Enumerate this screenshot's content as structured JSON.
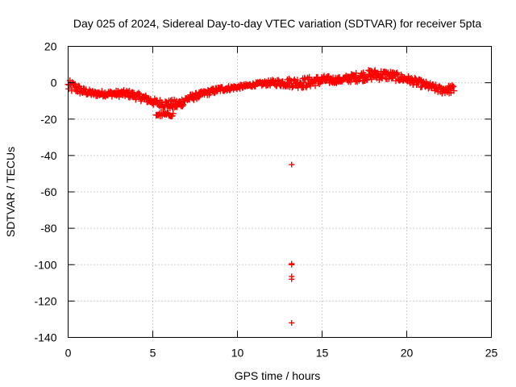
{
  "chart_data": {
    "type": "scatter",
    "title": "Day 025 of 2024, Sidereal Day-to-day VTEC variation (SDTVAR) for receiver 5pta",
    "xlabel": "GPS time / hours",
    "ylabel": "SDTVAR / TECUs",
    "xlim": [
      0,
      25
    ],
    "ylim": [
      -140,
      20
    ],
    "xticks": [
      0,
      5,
      10,
      15,
      20,
      25
    ],
    "yticks": [
      20,
      0,
      -20,
      -40,
      -60,
      -80,
      -100,
      -120,
      -140
    ],
    "xtick_labels": [
      "0",
      "5",
      "10",
      "15",
      "20",
      "25"
    ],
    "ytick_labels": [
      "20",
      "0",
      "-20",
      "-40",
      "-60",
      "-80",
      "-100",
      "-120",
      "-140"
    ],
    "grid": true,
    "marker": "plus",
    "series": [
      {
        "name": "SDTVAR",
        "color": "#ff0000",
        "band": [
          {
            "x": 0.0,
            "y": -2.0,
            "spread": 3.5
          },
          {
            "x": 0.4,
            "y": -2.5,
            "spread": 3.0
          },
          {
            "x": 0.8,
            "y": -4.5,
            "spread": 2.0
          },
          {
            "x": 1.5,
            "y": -6.0,
            "spread": 1.5
          },
          {
            "x": 2.5,
            "y": -6.0,
            "spread": 1.5
          },
          {
            "x": 3.5,
            "y": -6.0,
            "spread": 2.0
          },
          {
            "x": 4.5,
            "y": -8.5,
            "spread": 2.0
          },
          {
            "x": 5.2,
            "y": -11.0,
            "spread": 2.0
          },
          {
            "x": 6.0,
            "y": -12.0,
            "spread": 2.5
          },
          {
            "x": 6.5,
            "y": -12.0,
            "spread": 3.0
          },
          {
            "x": 7.0,
            "y": -9.0,
            "spread": 2.0
          },
          {
            "x": 8.0,
            "y": -6.0,
            "spread": 1.5
          },
          {
            "x": 9.0,
            "y": -3.5,
            "spread": 1.5
          },
          {
            "x": 10.0,
            "y": -2.5,
            "spread": 1.0
          },
          {
            "x": 11.0,
            "y": -1.0,
            "spread": 1.0
          },
          {
            "x": 12.0,
            "y": 0.0,
            "spread": 1.5
          },
          {
            "x": 13.0,
            "y": 0.0,
            "spread": 2.5
          },
          {
            "x": 14.0,
            "y": 0.0,
            "spread": 3.0
          },
          {
            "x": 15.0,
            "y": 1.5,
            "spread": 2.5
          },
          {
            "x": 16.0,
            "y": 1.5,
            "spread": 1.5
          },
          {
            "x": 17.0,
            "y": 3.0,
            "spread": 2.5
          },
          {
            "x": 18.0,
            "y": 4.5,
            "spread": 3.0
          },
          {
            "x": 19.0,
            "y": 4.0,
            "spread": 2.5
          },
          {
            "x": 20.0,
            "y": 2.0,
            "spread": 2.0
          },
          {
            "x": 21.0,
            "y": -1.0,
            "spread": 2.0
          },
          {
            "x": 22.0,
            "y": -4.0,
            "spread": 2.0
          },
          {
            "x": 22.8,
            "y": -3.5,
            "spread": 2.5
          }
        ],
        "patch": [
          {
            "x0": 5.2,
            "x1": 6.2,
            "y": -17.5,
            "spread": 1.0
          }
        ],
        "points": [
          {
            "x": 13.2,
            "y": -45
          },
          {
            "x": 13.2,
            "y": -99.5
          },
          {
            "x": 13.2,
            "y": -100
          },
          {
            "x": 13.2,
            "y": -106.5
          },
          {
            "x": 13.2,
            "y": -108
          },
          {
            "x": 13.2,
            "y": -132
          }
        ]
      }
    ]
  }
}
